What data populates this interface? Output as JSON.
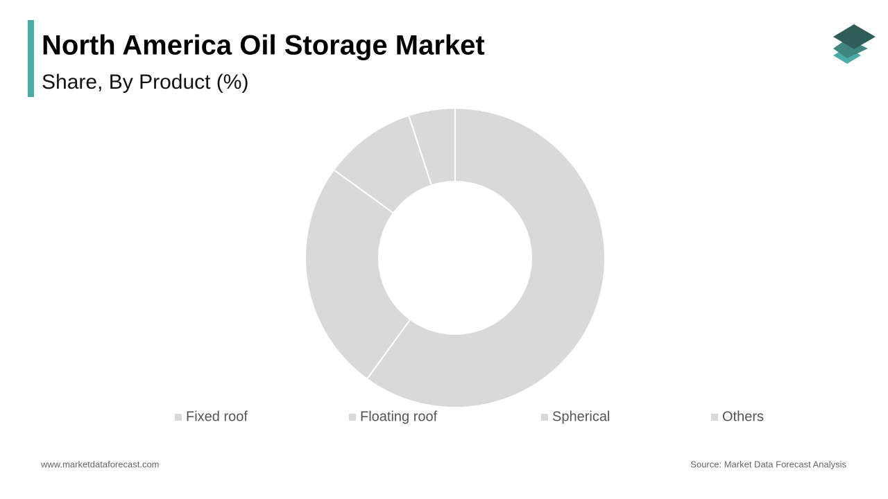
{
  "chart_data": {
    "type": "pie",
    "title": "North America Oil Storage Market",
    "subtitle": "Share, By Product (%)",
    "categories": [
      "Fixed roof",
      "Floating roof",
      "Spherical",
      "Others"
    ],
    "values": [
      60,
      25,
      10,
      5
    ],
    "colors": [
      "#d9d9d9",
      "#d9d9d9",
      "#d9d9d9",
      "#d9d9d9"
    ],
    "legend": "bottom",
    "footer_left": "www.marketdataforecast.com",
    "footer_right": "Source: Market Data Forecast Analysis"
  }
}
